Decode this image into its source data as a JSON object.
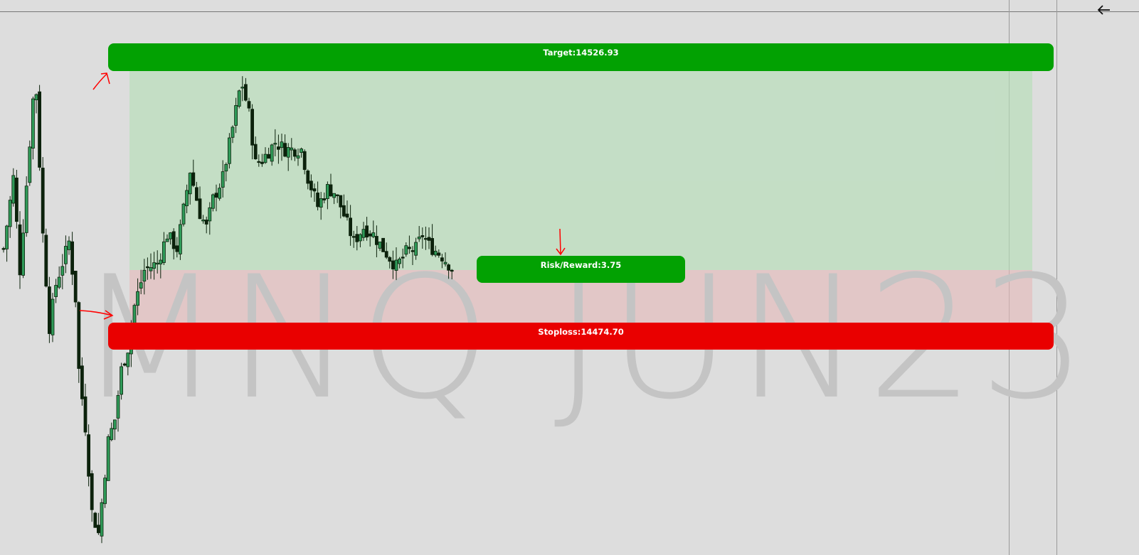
{
  "chart": {
    "symbol_watermark": "MNQ JUN23",
    "target_label": "Target:14526.93",
    "stoploss_label": "Stoploss:14474.70",
    "risk_reward_label": "Risk/Reward:3.75",
    "target_price": 14526.93,
    "stoploss_price": 14474.7,
    "risk_reward": 3.75,
    "colors": {
      "target": "#02a102",
      "stoploss": "#e90000",
      "risk_reward": "#02a102",
      "bull_candle": "#2f9a58",
      "bear_candle": "#0c220c",
      "annotation_arrows": "#ff0000"
    },
    "price_path": [
      [
        0,
        14490.12
      ],
      [
        3,
        14504.84
      ],
      [
        5,
        14485.7
      ],
      [
        9,
        14521.04
      ],
      [
        10,
        14522.51
      ],
      [
        12,
        14493.06
      ],
      [
        14,
        14473.92
      ],
      [
        16,
        14482.75
      ],
      [
        20,
        14491.59
      ],
      [
        22,
        14479.81
      ],
      [
        23,
        14465.08
      ],
      [
        25,
        14453.3
      ],
      [
        27,
        14435.63
      ],
      [
        29,
        14431.22
      ],
      [
        32,
        14450.36
      ],
      [
        34,
        14454.78
      ],
      [
        36,
        14465.08
      ],
      [
        38,
        14469.5
      ],
      [
        40,
        14478.34
      ],
      [
        43,
        14485.7
      ],
      [
        47,
        14487.17
      ],
      [
        50,
        14493.06
      ],
      [
        53,
        14490.12
      ],
      [
        57,
        14506.31
      ],
      [
        60,
        14497.48
      ],
      [
        62,
        14494.53
      ],
      [
        64,
        14500.42
      ],
      [
        67,
        14504.84
      ],
      [
        70,
        14515.15
      ],
      [
        72,
        14522.51
      ],
      [
        73,
        14523.98
      ],
      [
        75,
        14518.09
      ],
      [
        77,
        14507.79
      ],
      [
        79,
        14508.52
      ],
      [
        83,
        14512.2
      ],
      [
        86,
        14510.73
      ],
      [
        91,
        14510.73
      ],
      [
        93,
        14504.84
      ],
      [
        96,
        14498.95
      ],
      [
        99,
        14502.63
      ],
      [
        101,
        14501.9
      ],
      [
        103,
        14498.95
      ],
      [
        107,
        14491.59
      ],
      [
        110,
        14494.53
      ],
      [
        113,
        14493.06
      ],
      [
        116,
        14490.12
      ],
      [
        120,
        14486.44
      ],
      [
        123,
        14489.38
      ],
      [
        126,
        14490.12
      ],
      [
        128,
        14493.06
      ],
      [
        130,
        14490.85
      ],
      [
        134,
        14488.64
      ],
      [
        137,
        14486.14
      ]
    ]
  },
  "toolbar": {
    "back_icon": "arrow-left-icon"
  }
}
